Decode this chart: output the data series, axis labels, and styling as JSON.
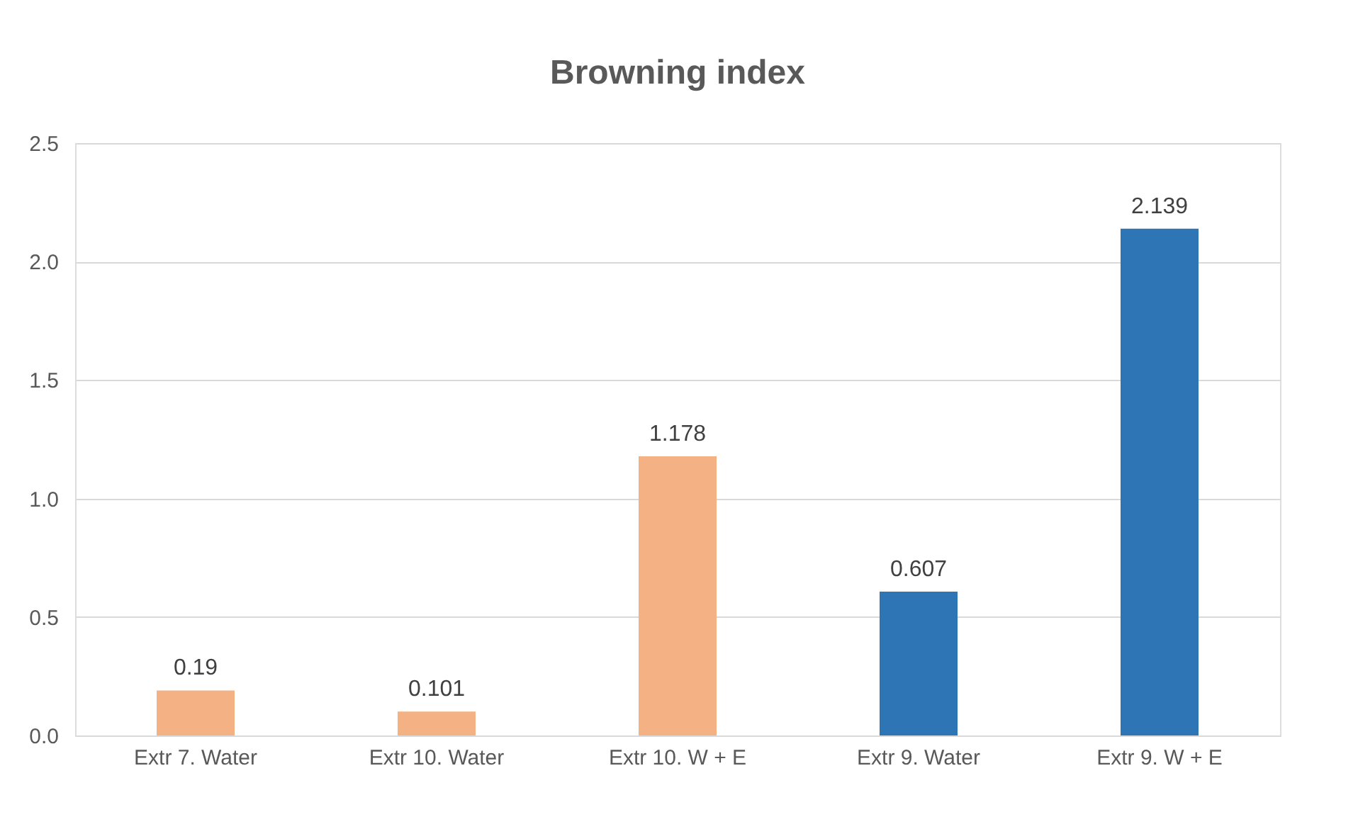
{
  "chart_data": {
    "type": "bar",
    "title": "Browning index",
    "categories": [
      "Extr 7. Water",
      "Extr 10. Water",
      "Extr 10. W + E",
      "Extr 9. Water",
      "Extr 9. W + E"
    ],
    "values": [
      0.19,
      0.101,
      1.178,
      0.607,
      2.139
    ],
    "colors": [
      "#f4b183",
      "#f4b183",
      "#f4b183",
      "#2e75b6",
      "#2e75b6"
    ],
    "ylim": [
      0,
      2.5
    ],
    "yticks": [
      {
        "value": 0,
        "label": "0.0"
      },
      0.5,
      {
        "value": 1,
        "label": "1.0"
      },
      1.5,
      {
        "value": 2,
        "label": "2.0"
      },
      2.5
    ],
    "grid": "y",
    "data_labels": true
  }
}
